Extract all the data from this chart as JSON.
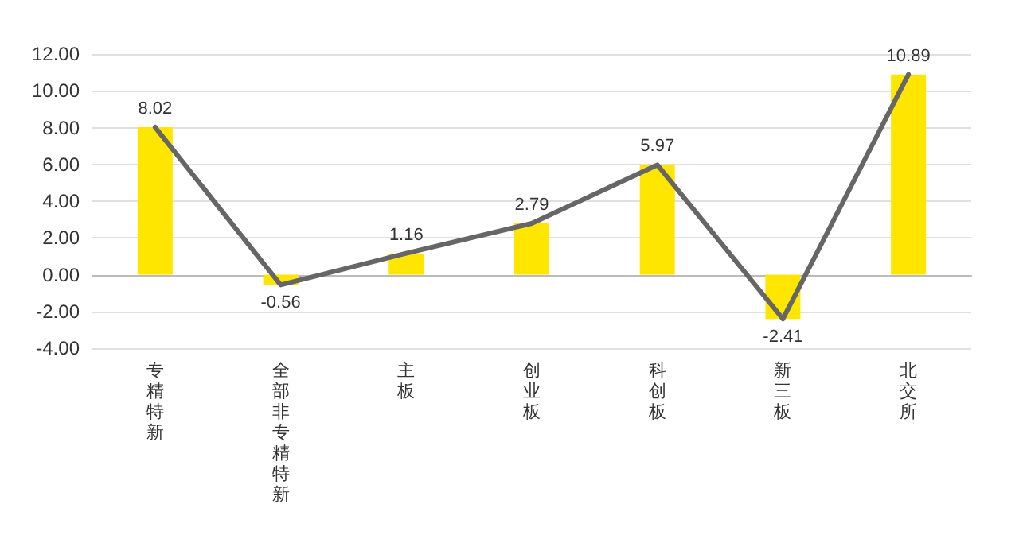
{
  "chart_data": {
    "type": "bar",
    "categories": [
      "专精特新",
      "全部非专精特新",
      "主板",
      "创业板",
      "科创板",
      "新三板",
      "北交所"
    ],
    "series": [
      {
        "color": "#ffe600",
        "values": [
          8.02,
          -0.56,
          1.16,
          2.79,
          5.97,
          -2.41,
          10.89
        ]
      },
      {
        "type": "line",
        "color": "#666666",
        "values": [
          8.02,
          -0.56,
          1.16,
          2.79,
          5.97,
          -2.41,
          10.89
        ],
        "value_labels": [
          "8.02",
          "-0.56",
          "1.16",
          "2.79",
          "5.97",
          "-2.41",
          "10.89"
        ]
      }
    ],
    "ylim": [
      -4,
      12
    ],
    "yticks": [
      {
        "value": -4,
        "label": "-4.00"
      },
      {
        "value": -2,
        "label": "-2.00"
      },
      {
        "value": 0,
        "label": "0.00"
      },
      {
        "value": 2,
        "label": "2.00"
      },
      {
        "value": 4,
        "label": "4.00"
      },
      {
        "value": 6,
        "label": "6.00"
      },
      {
        "value": 8,
        "label": "8.00"
      },
      {
        "value": 10,
        "label": "10.00"
      },
      {
        "value": 12,
        "label": "12.00"
      }
    ],
    "grid": "y",
    "marker": "none",
    "line_style": "solid"
  }
}
